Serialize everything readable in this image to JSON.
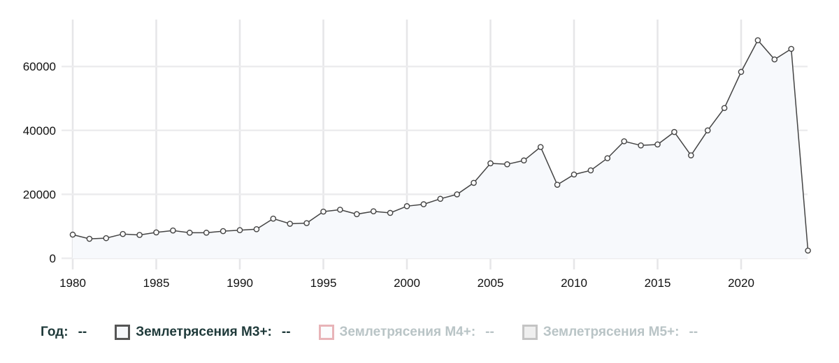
{
  "chart_data": {
    "type": "line",
    "title": "",
    "xlabel": "",
    "ylabel": "",
    "x": [
      1980,
      1981,
      1982,
      1983,
      1984,
      1985,
      1986,
      1987,
      1988,
      1989,
      1990,
      1991,
      1992,
      1993,
      1994,
      1995,
      1996,
      1997,
      1998,
      1999,
      2000,
      2001,
      2002,
      2003,
      2004,
      2005,
      2006,
      2007,
      2008,
      2009,
      2010,
      2011,
      2012,
      2013,
      2014,
      2015,
      2016,
      2017,
      2018,
      2019,
      2020,
      2021,
      2022,
      2023,
      2024
    ],
    "series": [
      {
        "name": "Землетрясения М3+",
        "color": "#444444",
        "fill": "#f7f9fc",
        "visible": true,
        "values": [
          7400,
          6100,
          6300,
          7600,
          7300,
          8100,
          8700,
          8000,
          8000,
          8500,
          8800,
          9100,
          12400,
          10800,
          11000,
          14600,
          15200,
          13800,
          14700,
          14200,
          16300,
          16900,
          18600,
          20000,
          23600,
          29700,
          29400,
          30600,
          34800,
          23000,
          26200,
          27500,
          31300,
          36600,
          35300,
          35600,
          39500,
          32200,
          40000,
          47000,
          58300,
          68200,
          62200,
          65500,
          2400
        ]
      },
      {
        "name": "Землетрясения М4+",
        "color": "#e8b4b8",
        "visible": false,
        "values": []
      },
      {
        "name": "Землетрясения М5+",
        "color": "#c0c0c0",
        "visible": false,
        "values": []
      }
    ],
    "x_ticks": [
      1980,
      1985,
      1990,
      1995,
      2000,
      2005,
      2010,
      2015,
      2020
    ],
    "y_ticks": [
      0,
      20000,
      40000,
      60000
    ],
    "xlim": [
      1980,
      2024
    ],
    "ylim": [
      0,
      72000
    ],
    "grid": true,
    "legend_position": "bottom"
  },
  "legend": {
    "year_label": "Год:",
    "year_value": "--",
    "items": [
      {
        "label": "Землетрясения М3+:",
        "value": "--",
        "border": "#555555",
        "fill": "#f5f7fa",
        "active": true
      },
      {
        "label": "Землетрясения М4+:",
        "value": "--",
        "border": "#e8b4b8",
        "fill": "#fbfcfd",
        "active": false
      },
      {
        "label": "Землетрясения М5+:",
        "value": "--",
        "border": "#c4c4c4",
        "fill": "#efefef",
        "active": false
      }
    ]
  }
}
